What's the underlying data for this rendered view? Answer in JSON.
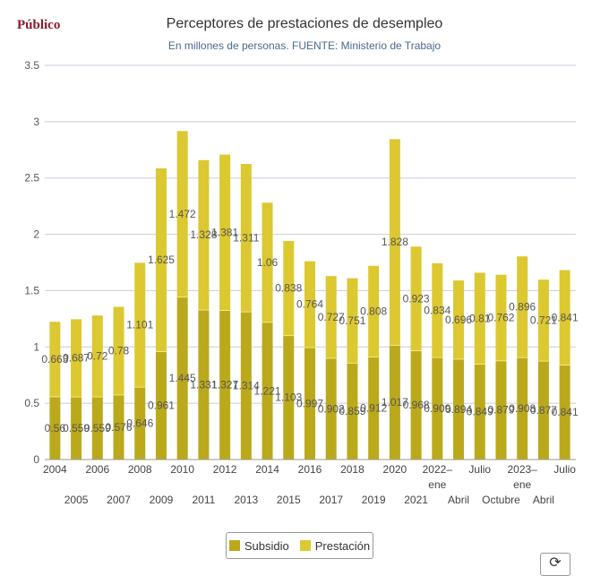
{
  "header": {
    "logo": "Público"
  },
  "chart_data": {
    "type": "bar",
    "stacked": true,
    "title": "Perceptores de prestaciones de desempleo",
    "subtitle": "En millones de personas. FUENTE: Ministerio de Trabajo",
    "categories": [
      "2004",
      "2005",
      "2006",
      "2007",
      "2008",
      "2009",
      "2010",
      "2011",
      "2012",
      "2013",
      "2014",
      "2015",
      "2016",
      "2017",
      "2018",
      "2019",
      "2020",
      "2021",
      "2022–ene",
      "Abril",
      "Julio",
      "Octubre",
      "2023–ene",
      "Abril",
      "Julio"
    ],
    "series": [
      {
        "name": "Subsidio",
        "color": "#bba91c",
        "values": [
          0.56,
          0.559,
          0.559,
          0.576,
          0.646,
          0.961,
          1.445,
          1.331,
          1.327,
          1.314,
          1.221,
          1.103,
          0.997,
          0.902,
          0.859,
          0.912,
          1.017,
          0.968,
          0.909,
          0.894,
          0.849,
          0.879,
          0.908,
          0.877,
          0.841
        ]
      },
      {
        "name": "Prestación",
        "color": "#dcc830",
        "values": [
          0.663,
          0.687,
          0.72,
          0.78,
          1.101,
          1.625,
          1.472,
          1.328,
          1.381,
          1.311,
          1.06,
          0.838,
          0.764,
          0.727,
          0.751,
          0.808,
          1.828,
          0.923,
          0.834,
          0.696,
          0.81,
          0.762,
          0.896,
          0.721,
          0.841
        ]
      }
    ],
    "ylim": [
      0,
      3.5
    ],
    "yticks": [
      "0",
      "0.5",
      "1",
      "1.5",
      "2",
      "2.5",
      "3",
      "3.5"
    ],
    "legend": "bottom",
    "grid": true
  },
  "controls": {
    "refresh_icon": "refresh-icon"
  }
}
